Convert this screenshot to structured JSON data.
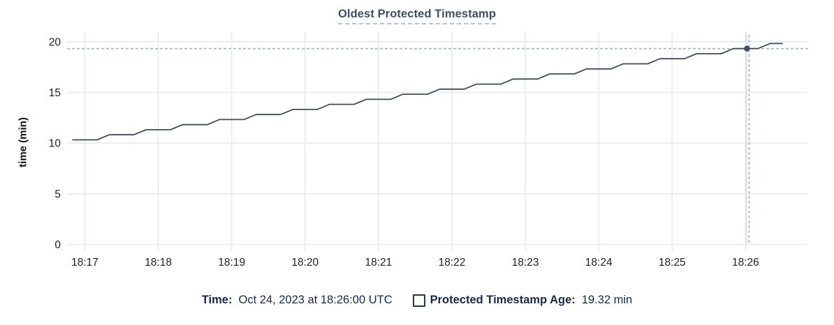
{
  "header": {
    "title": "Oldest Protected Timestamp"
  },
  "tooltip": {
    "time_label": "Time:",
    "time_value": "Oct 24, 2023 at 18:26:00 UTC",
    "series_label": "Protected Timestamp Age:",
    "series_value": "19.32 min"
  },
  "colors": {
    "line": "#3e4c63",
    "point": "#3e4c63",
    "title": "#3d4f66",
    "title_underline": "#b8c2cd",
    "legend_text": "#17294a",
    "gridline": "#ececec",
    "hover_guideline": "#dfe2e6",
    "crosshair": "#a2b5c4",
    "tick_text": "#212121"
  },
  "chart_data": {
    "type": "line",
    "title": "Oldest Protected Timestamp",
    "xlabel": "",
    "ylabel": "time (min)",
    "ylim": [
      0,
      20
    ],
    "y_ticks": [
      0,
      5,
      10,
      15,
      20
    ],
    "x_ticks": [
      "18:17",
      "18:18",
      "18:19",
      "18:20",
      "18:21",
      "18:22",
      "18:23",
      "18:24",
      "18:25",
      "18:26"
    ],
    "grid": true,
    "legend_position": "bottom",
    "series": [
      {
        "name": "Protected Timestamp Age",
        "unit": "min",
        "points": [
          [
            "18:16:50",
            10.32
          ],
          [
            "18:17:00",
            10.32
          ],
          [
            "18:17:10",
            10.32
          ],
          [
            "18:17:20",
            10.82
          ],
          [
            "18:17:30",
            10.82
          ],
          [
            "18:17:40",
            10.82
          ],
          [
            "18:17:50",
            11.32
          ],
          [
            "18:18:00",
            11.32
          ],
          [
            "18:18:10",
            11.32
          ],
          [
            "18:18:20",
            11.82
          ],
          [
            "18:18:30",
            11.82
          ],
          [
            "18:18:40",
            11.82
          ],
          [
            "18:18:50",
            12.32
          ],
          [
            "18:19:00",
            12.32
          ],
          [
            "18:19:10",
            12.32
          ],
          [
            "18:19:20",
            12.82
          ],
          [
            "18:19:30",
            12.82
          ],
          [
            "18:19:40",
            12.82
          ],
          [
            "18:19:50",
            13.32
          ],
          [
            "18:20:00",
            13.32
          ],
          [
            "18:20:10",
            13.32
          ],
          [
            "18:20:20",
            13.82
          ],
          [
            "18:20:30",
            13.82
          ],
          [
            "18:20:40",
            13.82
          ],
          [
            "18:20:50",
            14.32
          ],
          [
            "18:21:00",
            14.32
          ],
          [
            "18:21:10",
            14.32
          ],
          [
            "18:21:20",
            14.82
          ],
          [
            "18:21:30",
            14.82
          ],
          [
            "18:21:40",
            14.82
          ],
          [
            "18:21:50",
            15.32
          ],
          [
            "18:22:00",
            15.32
          ],
          [
            "18:22:10",
            15.32
          ],
          [
            "18:22:20",
            15.82
          ],
          [
            "18:22:30",
            15.82
          ],
          [
            "18:22:40",
            15.82
          ],
          [
            "18:22:50",
            16.32
          ],
          [
            "18:23:00",
            16.32
          ],
          [
            "18:23:10",
            16.32
          ],
          [
            "18:23:20",
            16.82
          ],
          [
            "18:23:30",
            16.82
          ],
          [
            "18:23:40",
            16.82
          ],
          [
            "18:23:50",
            17.32
          ],
          [
            "18:24:00",
            17.32
          ],
          [
            "18:24:10",
            17.32
          ],
          [
            "18:24:20",
            17.82
          ],
          [
            "18:24:30",
            17.82
          ],
          [
            "18:24:40",
            17.82
          ],
          [
            "18:24:50",
            18.32
          ],
          [
            "18:25:00",
            18.32
          ],
          [
            "18:25:10",
            18.32
          ],
          [
            "18:25:20",
            18.82
          ],
          [
            "18:25:30",
            18.82
          ],
          [
            "18:25:40",
            18.82
          ],
          [
            "18:25:50",
            19.32
          ],
          [
            "18:26:00",
            19.32
          ],
          [
            "18:26:10",
            19.32
          ],
          [
            "18:26:20",
            19.82
          ],
          [
            "18:26:30",
            19.82
          ]
        ]
      }
    ],
    "highlighted_point": {
      "time": "18:26:00",
      "value": 19.32
    }
  }
}
